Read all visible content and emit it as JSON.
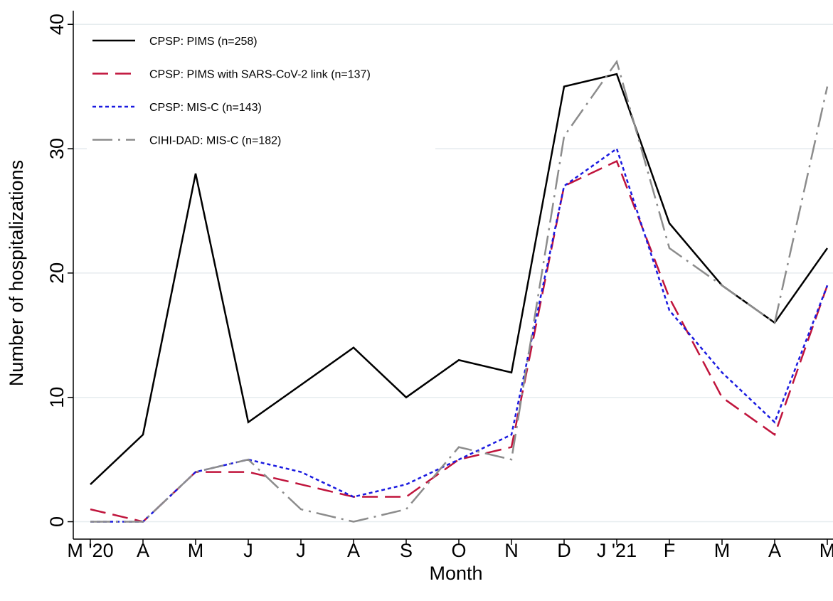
{
  "chart_data": {
    "type": "line",
    "xlabel": "Month",
    "ylabel": "Number of hospitalizations",
    "categories": [
      "M '20",
      "A",
      "M",
      "J",
      "J",
      "A",
      "S",
      "O",
      "N",
      "D",
      "J '21",
      "F",
      "M",
      "A",
      "M"
    ],
    "series": [
      {
        "name": "CPSP: PIMS (n=258)",
        "color": "#000000",
        "style": "solid",
        "values": [
          3,
          7,
          28,
          8,
          11,
          14,
          10,
          13,
          12,
          35,
          36,
          24,
          19,
          16,
          22
        ]
      },
      {
        "name": "CPSP: PIMS with SARS-CoV-2 link (n=137)",
        "color": "#c0143c",
        "style": "dashed",
        "values": [
          1,
          0,
          4,
          4,
          3,
          2,
          2,
          5,
          6,
          27,
          29,
          18,
          10,
          7,
          19
        ]
      },
      {
        "name": "CPSP: MIS-C (n=143)",
        "color": "#1a1ae0",
        "style": "dotted",
        "values": [
          0,
          0,
          4,
          5,
          4,
          2,
          3,
          5,
          7,
          27,
          30,
          17,
          12,
          8,
          19
        ]
      },
      {
        "name": "CIHI-DAD: MIS-C (n=182)",
        "color": "#8c8c8c",
        "style": "dashdot",
        "values": [
          0,
          0,
          4,
          5,
          1,
          0,
          1,
          6,
          5,
          31,
          37,
          22,
          19,
          16,
          35
        ]
      }
    ],
    "ylim": [
      -1.4,
      41.1
    ],
    "yticks": [
      0,
      10,
      20,
      30,
      40
    ],
    "grid": true,
    "legend": "top-left"
  }
}
